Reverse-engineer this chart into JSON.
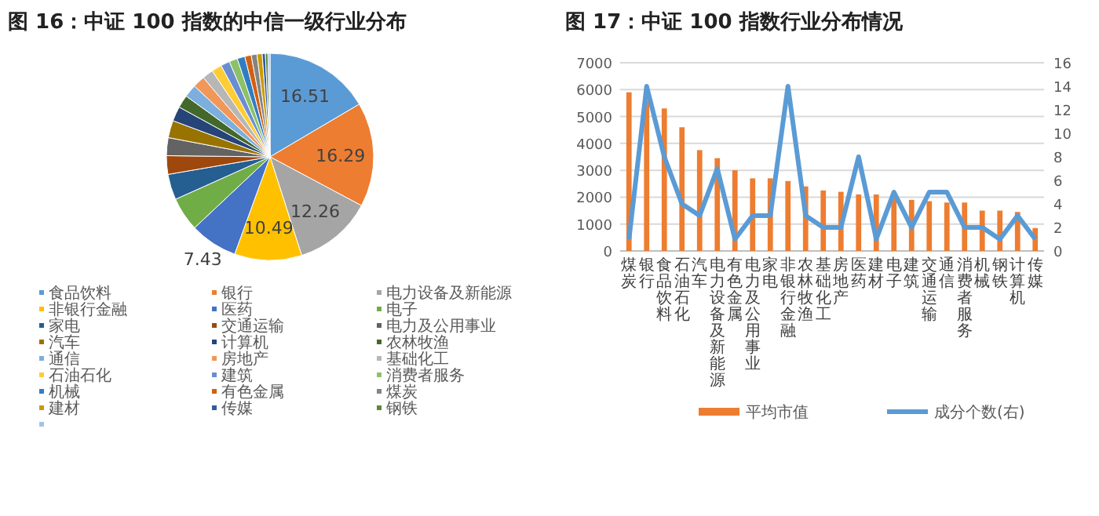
{
  "chart_data": [
    {
      "type": "pie",
      "title": "图 16：中证 100 指数的中信一级行业分布",
      "categories": [
        "食品饮料",
        "银行",
        "电力设备及新能源",
        "非银行金融",
        "医药",
        "电子",
        "家电",
        "交通运输",
        "电力及公用事业",
        "汽车",
        "计算机",
        "农林牧渔",
        "通信",
        "房地产",
        "基础化工",
        "石油石化",
        "建筑",
        "消费者服务",
        "机械",
        "有色金属",
        "煤炭",
        "建材",
        "传媒",
        "钢铁",
        null
      ],
      "values": [
        16.51,
        16.29,
        12.26,
        10.49,
        7.43,
        5.3,
        4.0,
        2.9,
        2.8,
        2.7,
        2.3,
        2.0,
        2.0,
        1.9,
        1.7,
        1.6,
        1.4,
        1.3,
        1.2,
        1.0,
        0.9,
        0.8,
        0.5,
        0.4,
        0.32
      ],
      "value_labels": [
        "16.51",
        "16.29",
        "12.26",
        "10.49",
        "7.43",
        null,
        null,
        null,
        null,
        null,
        null,
        null,
        null,
        null,
        null,
        null,
        null,
        null,
        null,
        null,
        null,
        null,
        null,
        null,
        null
      ],
      "colors": [
        "#5b9bd5",
        "#ed7d31",
        "#a5a5a5",
        "#ffc000",
        "#4472c4",
        "#70ad47",
        "#255e91",
        "#9e480e",
        "#636363",
        "#997300",
        "#264478",
        "#43682b",
        "#7cafdd",
        "#f1975a",
        "#b7b7b7",
        "#ffcd33",
        "#698ed0",
        "#8cc168",
        "#327dc2",
        "#d26012",
        "#848484",
        "#cc9a00",
        "#335aa1",
        "#5a8a39",
        "#a1c4e6"
      ],
      "legend": "bottom"
    },
    {
      "type": "bar",
      "title": "图 17：中证 100 指数行业分布情况",
      "categories": [
        "煤炭",
        "银行",
        "食品饮料",
        "石油石化",
        "汽车",
        "电力设备及新能源",
        "有色金属",
        "电力及公用事业",
        "家电",
        "非银行金融",
        "农林牧渔",
        "基础化工",
        "房地产",
        "医药",
        "建材",
        "电子",
        "建筑",
        "交通运输",
        "通信",
        "消费者服务",
        "机械",
        "钢铁",
        "计算机",
        "传媒"
      ],
      "series": [
        {
          "name": "平均市值",
          "type": "bar",
          "color": "#ed7d31",
          "values": [
            5900,
            5600,
            5300,
            4600,
            3750,
            3450,
            3000,
            2700,
            2700,
            2600,
            2400,
            2250,
            2200,
            2100,
            2100,
            2000,
            1900,
            1850,
            1800,
            1800,
            1500,
            1500,
            1450,
            850
          ]
        },
        {
          "name": "成分个数(右)",
          "type": "line",
          "axis": "y2",
          "color": "#5b9bd5",
          "values": [
            1,
            14,
            8,
            4,
            3,
            7,
            1,
            3,
            3,
            14,
            3,
            2,
            2,
            8,
            1,
            5,
            2,
            5,
            5,
            2,
            2,
            1,
            3,
            1
          ]
        }
      ],
      "ylim": [
        0,
        7000
      ],
      "yticks": [
        0,
        1000,
        2000,
        3000,
        4000,
        5000,
        6000,
        7000
      ],
      "y2lim": [
        0,
        16
      ],
      "y2ticks": [
        0,
        2,
        4,
        6,
        8,
        10,
        12,
        14,
        16
      ],
      "grid": "y",
      "legend": "bottom"
    }
  ]
}
